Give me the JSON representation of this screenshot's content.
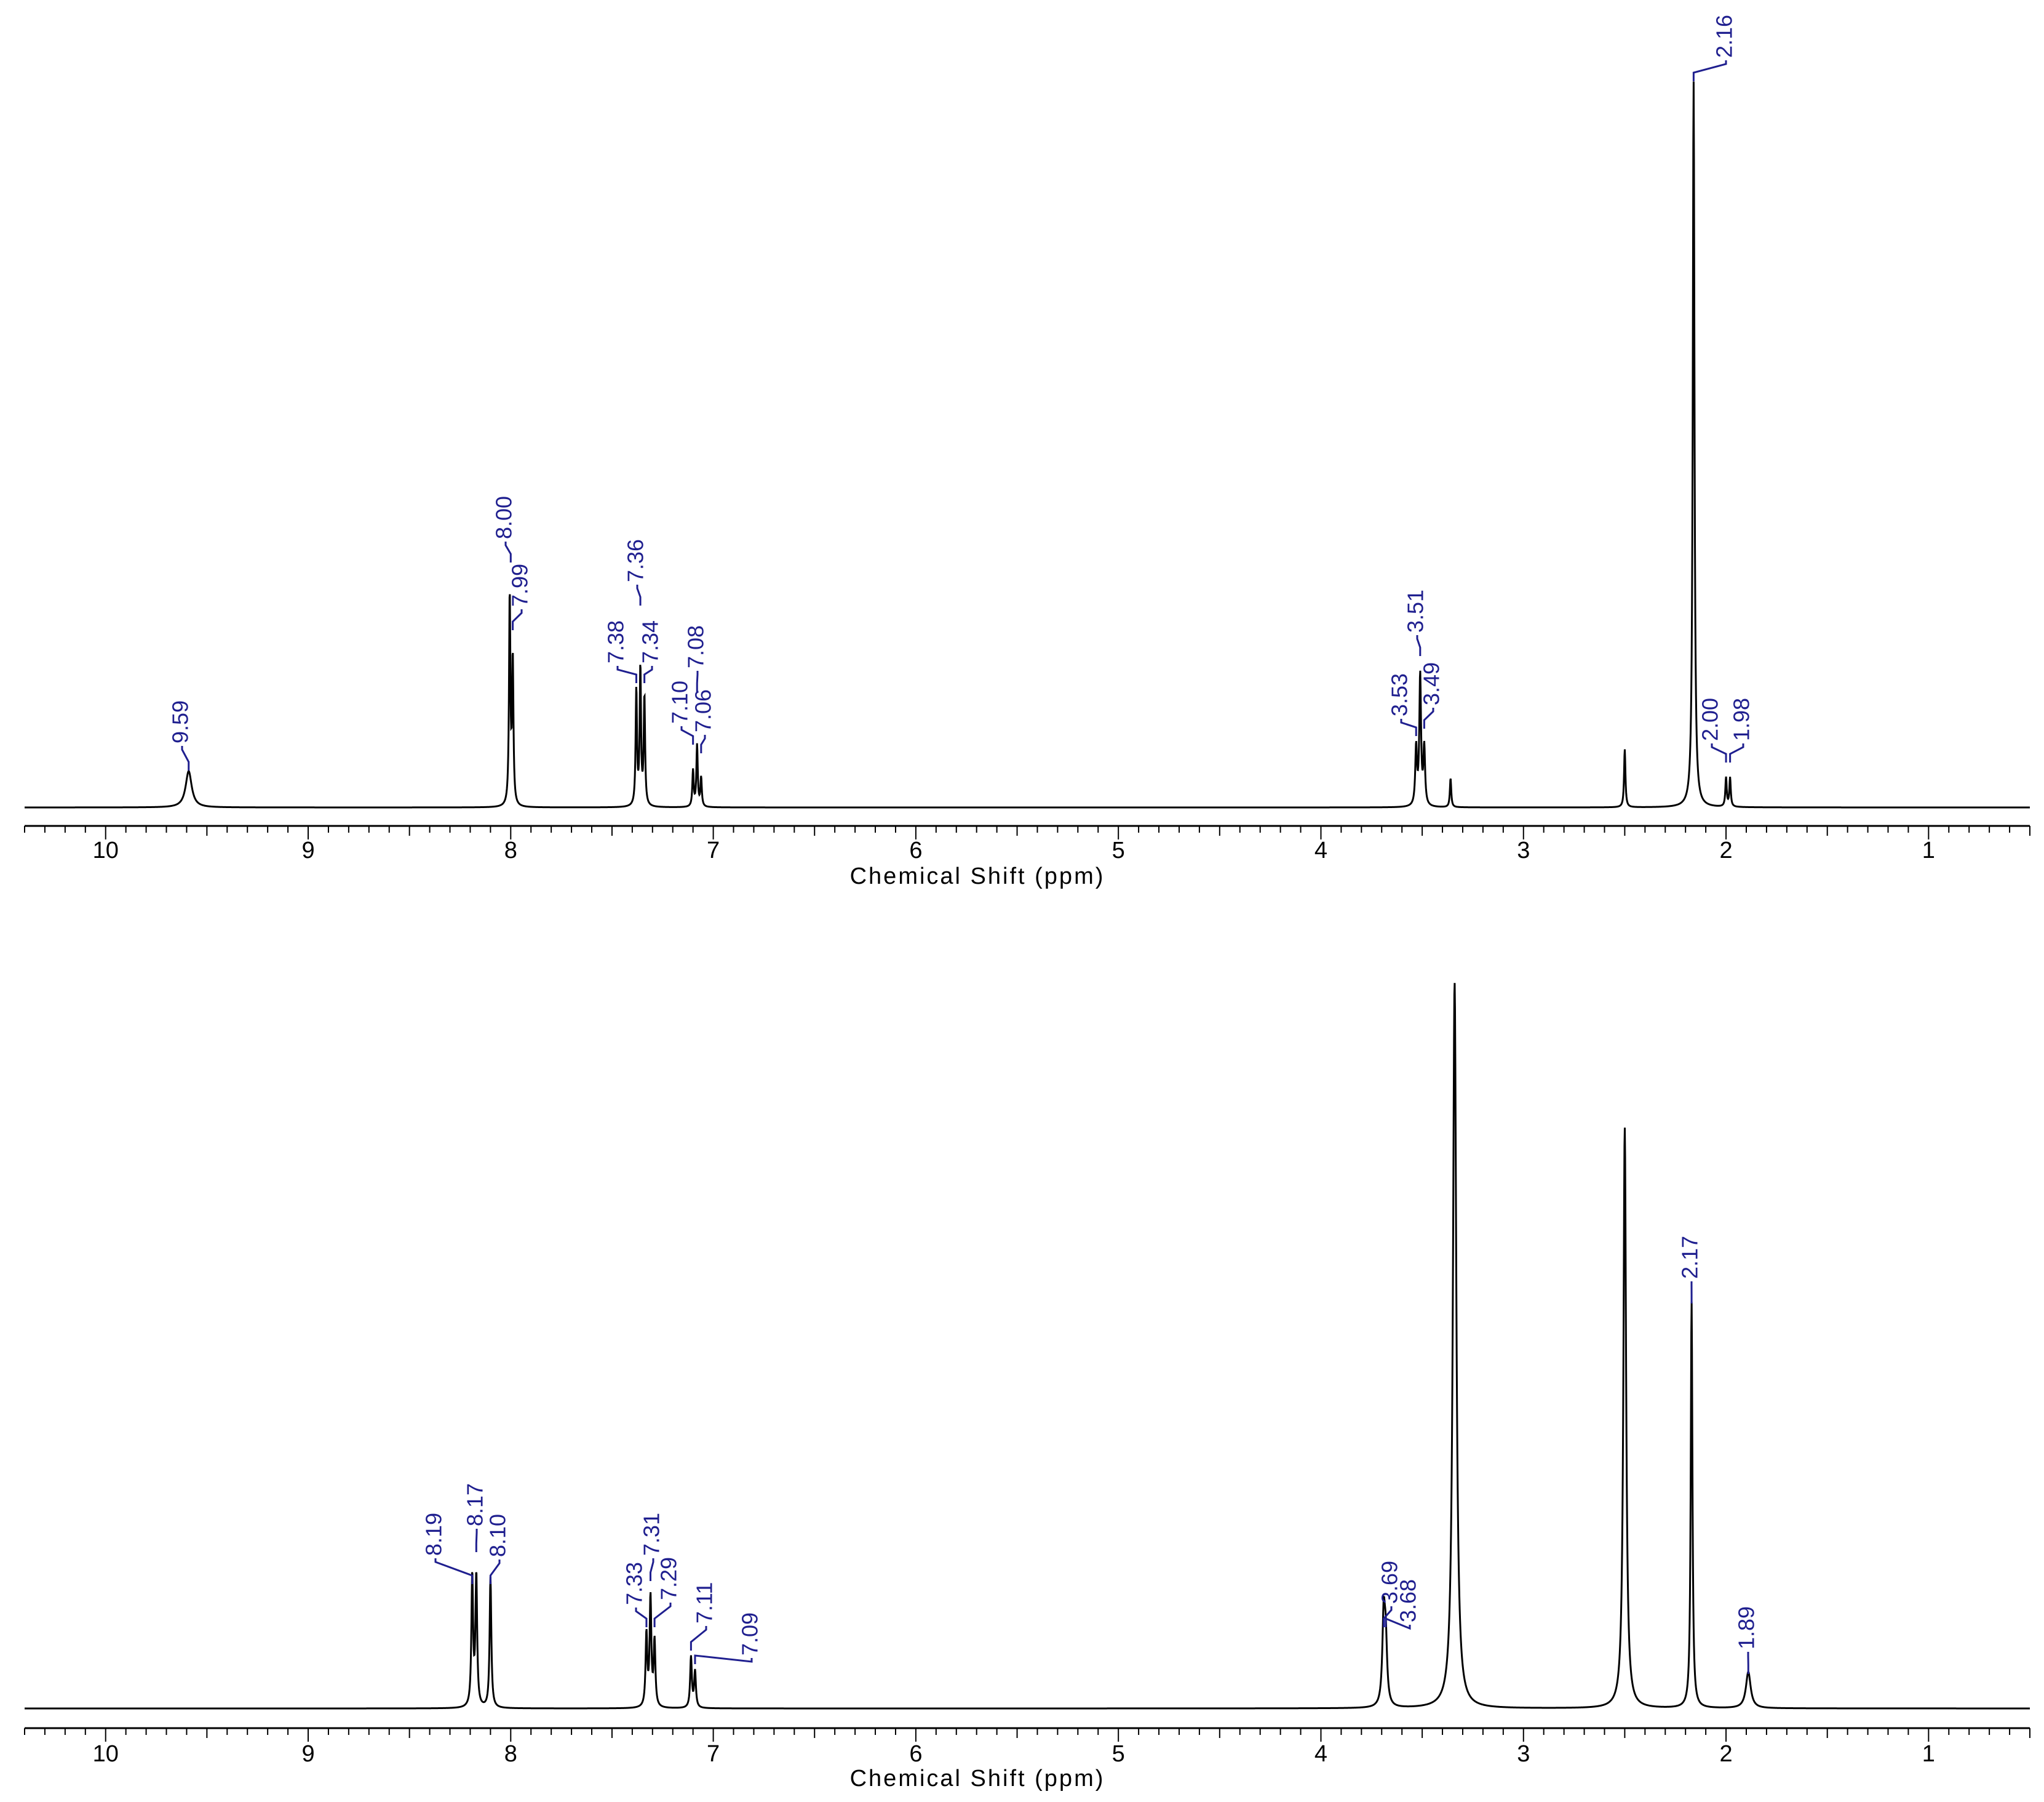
{
  "chart_data": [
    {
      "type": "line",
      "title": "",
      "xlabel": "Chemical Shift (ppm)",
      "ylabel": "",
      "xlim": [
        10.4,
        0.5
      ],
      "x_reversed": true,
      "ticks": [
        "10",
        "9",
        "8",
        "7",
        "6",
        "5",
        "4",
        "3",
        "2",
        "1"
      ],
      "trace_color": "#000000",
      "label_color": "#1f1f8f",
      "peaks": [
        {
          "shift": 9.59,
          "height": 0.05,
          "width": 0.018
        },
        {
          "shift": 8.005,
          "height": 0.29,
          "width": 0.004
        },
        {
          "shift": 7.99,
          "height": 0.2,
          "width": 0.004
        },
        {
          "shift": 7.38,
          "height": 0.16,
          "width": 0.004
        },
        {
          "shift": 7.36,
          "height": 0.19,
          "width": 0.004
        },
        {
          "shift": 7.34,
          "height": 0.15,
          "width": 0.004
        },
        {
          "shift": 7.1,
          "height": 0.05,
          "width": 0.004
        },
        {
          "shift": 7.08,
          "height": 0.085,
          "width": 0.004
        },
        {
          "shift": 7.06,
          "height": 0.04,
          "width": 0.004
        },
        {
          "shift": 3.53,
          "height": 0.08,
          "width": 0.005
        },
        {
          "shift": 3.51,
          "height": 0.18,
          "width": 0.005
        },
        {
          "shift": 3.49,
          "height": 0.08,
          "width": 0.005
        },
        {
          "shift": 3.36,
          "height": 0.04,
          "width": 0.004
        },
        {
          "shift": 2.5,
          "height": 0.08,
          "width": 0.004
        },
        {
          "shift": 2.16,
          "height": 1.0,
          "width": 0.005
        },
        {
          "shift": 2.0,
          "height": 0.04,
          "width": 0.004
        },
        {
          "shift": 1.98,
          "height": 0.04,
          "width": 0.004
        }
      ],
      "labels": [
        {
          "text": "9.59",
          "ppm": 9.59
        },
        {
          "text": "8.00",
          "ppm": 8.0
        },
        {
          "text": "7.99",
          "ppm": 7.99
        },
        {
          "text": "7.38",
          "ppm": 7.38
        },
        {
          "text": "7.36",
          "ppm": 7.36
        },
        {
          "text": "7.34",
          "ppm": 7.34
        },
        {
          "text": "7.10",
          "ppm": 7.1
        },
        {
          "text": "7.08",
          "ppm": 7.08
        },
        {
          "text": "7.06",
          "ppm": 7.06
        },
        {
          "text": "3.53",
          "ppm": 3.53
        },
        {
          "text": "3.51",
          "ppm": 3.51
        },
        {
          "text": "3.49",
          "ppm": 3.49
        },
        {
          "text": "2.16",
          "ppm": 2.16
        },
        {
          "text": "2.00",
          "ppm": 2.0
        },
        {
          "text": "1.98",
          "ppm": 1.98
        }
      ]
    },
    {
      "type": "line",
      "title": "",
      "xlabel": "Chemical Shift (ppm)",
      "ylabel": "",
      "xlim": [
        10.4,
        0.5
      ],
      "x_reversed": true,
      "ticks": [
        "10",
        "9",
        "8",
        "7",
        "6",
        "5",
        "4",
        "3",
        "2",
        "1"
      ],
      "trace_color": "#000000",
      "label_color": "#1f1f8f",
      "peaks": [
        {
          "shift": 8.19,
          "height": 0.18,
          "width": 0.005
        },
        {
          "shift": 8.17,
          "height": 0.18,
          "width": 0.005
        },
        {
          "shift": 8.1,
          "height": 0.18,
          "width": 0.005
        },
        {
          "shift": 7.33,
          "height": 0.1,
          "width": 0.005
        },
        {
          "shift": 7.31,
          "height": 0.15,
          "width": 0.005
        },
        {
          "shift": 7.29,
          "height": 0.09,
          "width": 0.005
        },
        {
          "shift": 7.11,
          "height": 0.07,
          "width": 0.005
        },
        {
          "shift": 7.09,
          "height": 0.05,
          "width": 0.005
        },
        {
          "shift": 3.69,
          "height": 0.12,
          "width": 0.008
        },
        {
          "shift": 3.68,
          "height": 0.08,
          "width": 0.008
        },
        {
          "shift": 3.34,
          "height": 1.0,
          "width": 0.01
        },
        {
          "shift": 2.5,
          "height": 0.8,
          "width": 0.008
        },
        {
          "shift": 2.17,
          "height": 0.56,
          "width": 0.005
        },
        {
          "shift": 1.89,
          "height": 0.05,
          "width": 0.014
        }
      ],
      "labels": [
        {
          "text": "8.19",
          "ppm": 8.19
        },
        {
          "text": "8.17",
          "ppm": 8.17
        },
        {
          "text": "8.10",
          "ppm": 8.1
        },
        {
          "text": "7.33",
          "ppm": 7.33
        },
        {
          "text": "7.31",
          "ppm": 7.31
        },
        {
          "text": "7.29",
          "ppm": 7.29
        },
        {
          "text": "7.11",
          "ppm": 7.11
        },
        {
          "text": "7.09",
          "ppm": 7.09
        },
        {
          "text": "3.69",
          "ppm": 3.69
        },
        {
          "text": "3.68",
          "ppm": 3.68
        },
        {
          "text": "2.17",
          "ppm": 2.17
        },
        {
          "text": "1.89",
          "ppm": 1.89
        }
      ]
    }
  ]
}
